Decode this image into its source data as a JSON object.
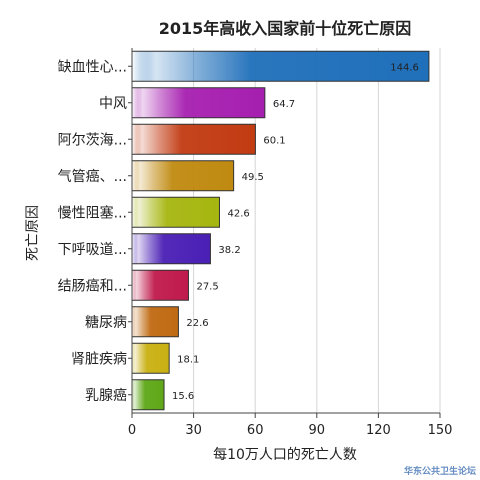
{
  "chart_data": {
    "type": "bar",
    "orientation": "horizontal",
    "title": "2015年高收入国家前十位死亡原因",
    "xlabel": "每10万人口的死亡人数",
    "ylabel": "死亡原因",
    "xlim": [
      0,
      150
    ],
    "xticks": [
      0,
      30,
      60,
      90,
      120,
      150
    ],
    "grid": true,
    "categories": [
      "缺血性心...",
      "中风",
      "阿尔茨海...",
      "气管癌、...",
      "慢性阻塞...",
      "下呼吸道...",
      "结肠癌和...",
      "糖尿病",
      "肾脏疾病",
      "乳腺癌"
    ],
    "values": [
      144.6,
      64.7,
      60.1,
      49.5,
      42.6,
      38.2,
      27.5,
      22.6,
      18.1,
      15.6
    ],
    "value_labels": [
      "144.6",
      "64.7",
      "60.1",
      "49.5",
      "42.6",
      "38.2",
      "27.5",
      "22.6",
      "18.1",
      "15.6"
    ],
    "colors": [
      "#1f6fba",
      "#a61fb0",
      "#c23b12",
      "#c08a10",
      "#a6b60f",
      "#4a1fb5",
      "#c01a4c",
      "#c06a12",
      "#c9b012",
      "#5fa818"
    ]
  },
  "watermark": "华东公共卫生论坛"
}
